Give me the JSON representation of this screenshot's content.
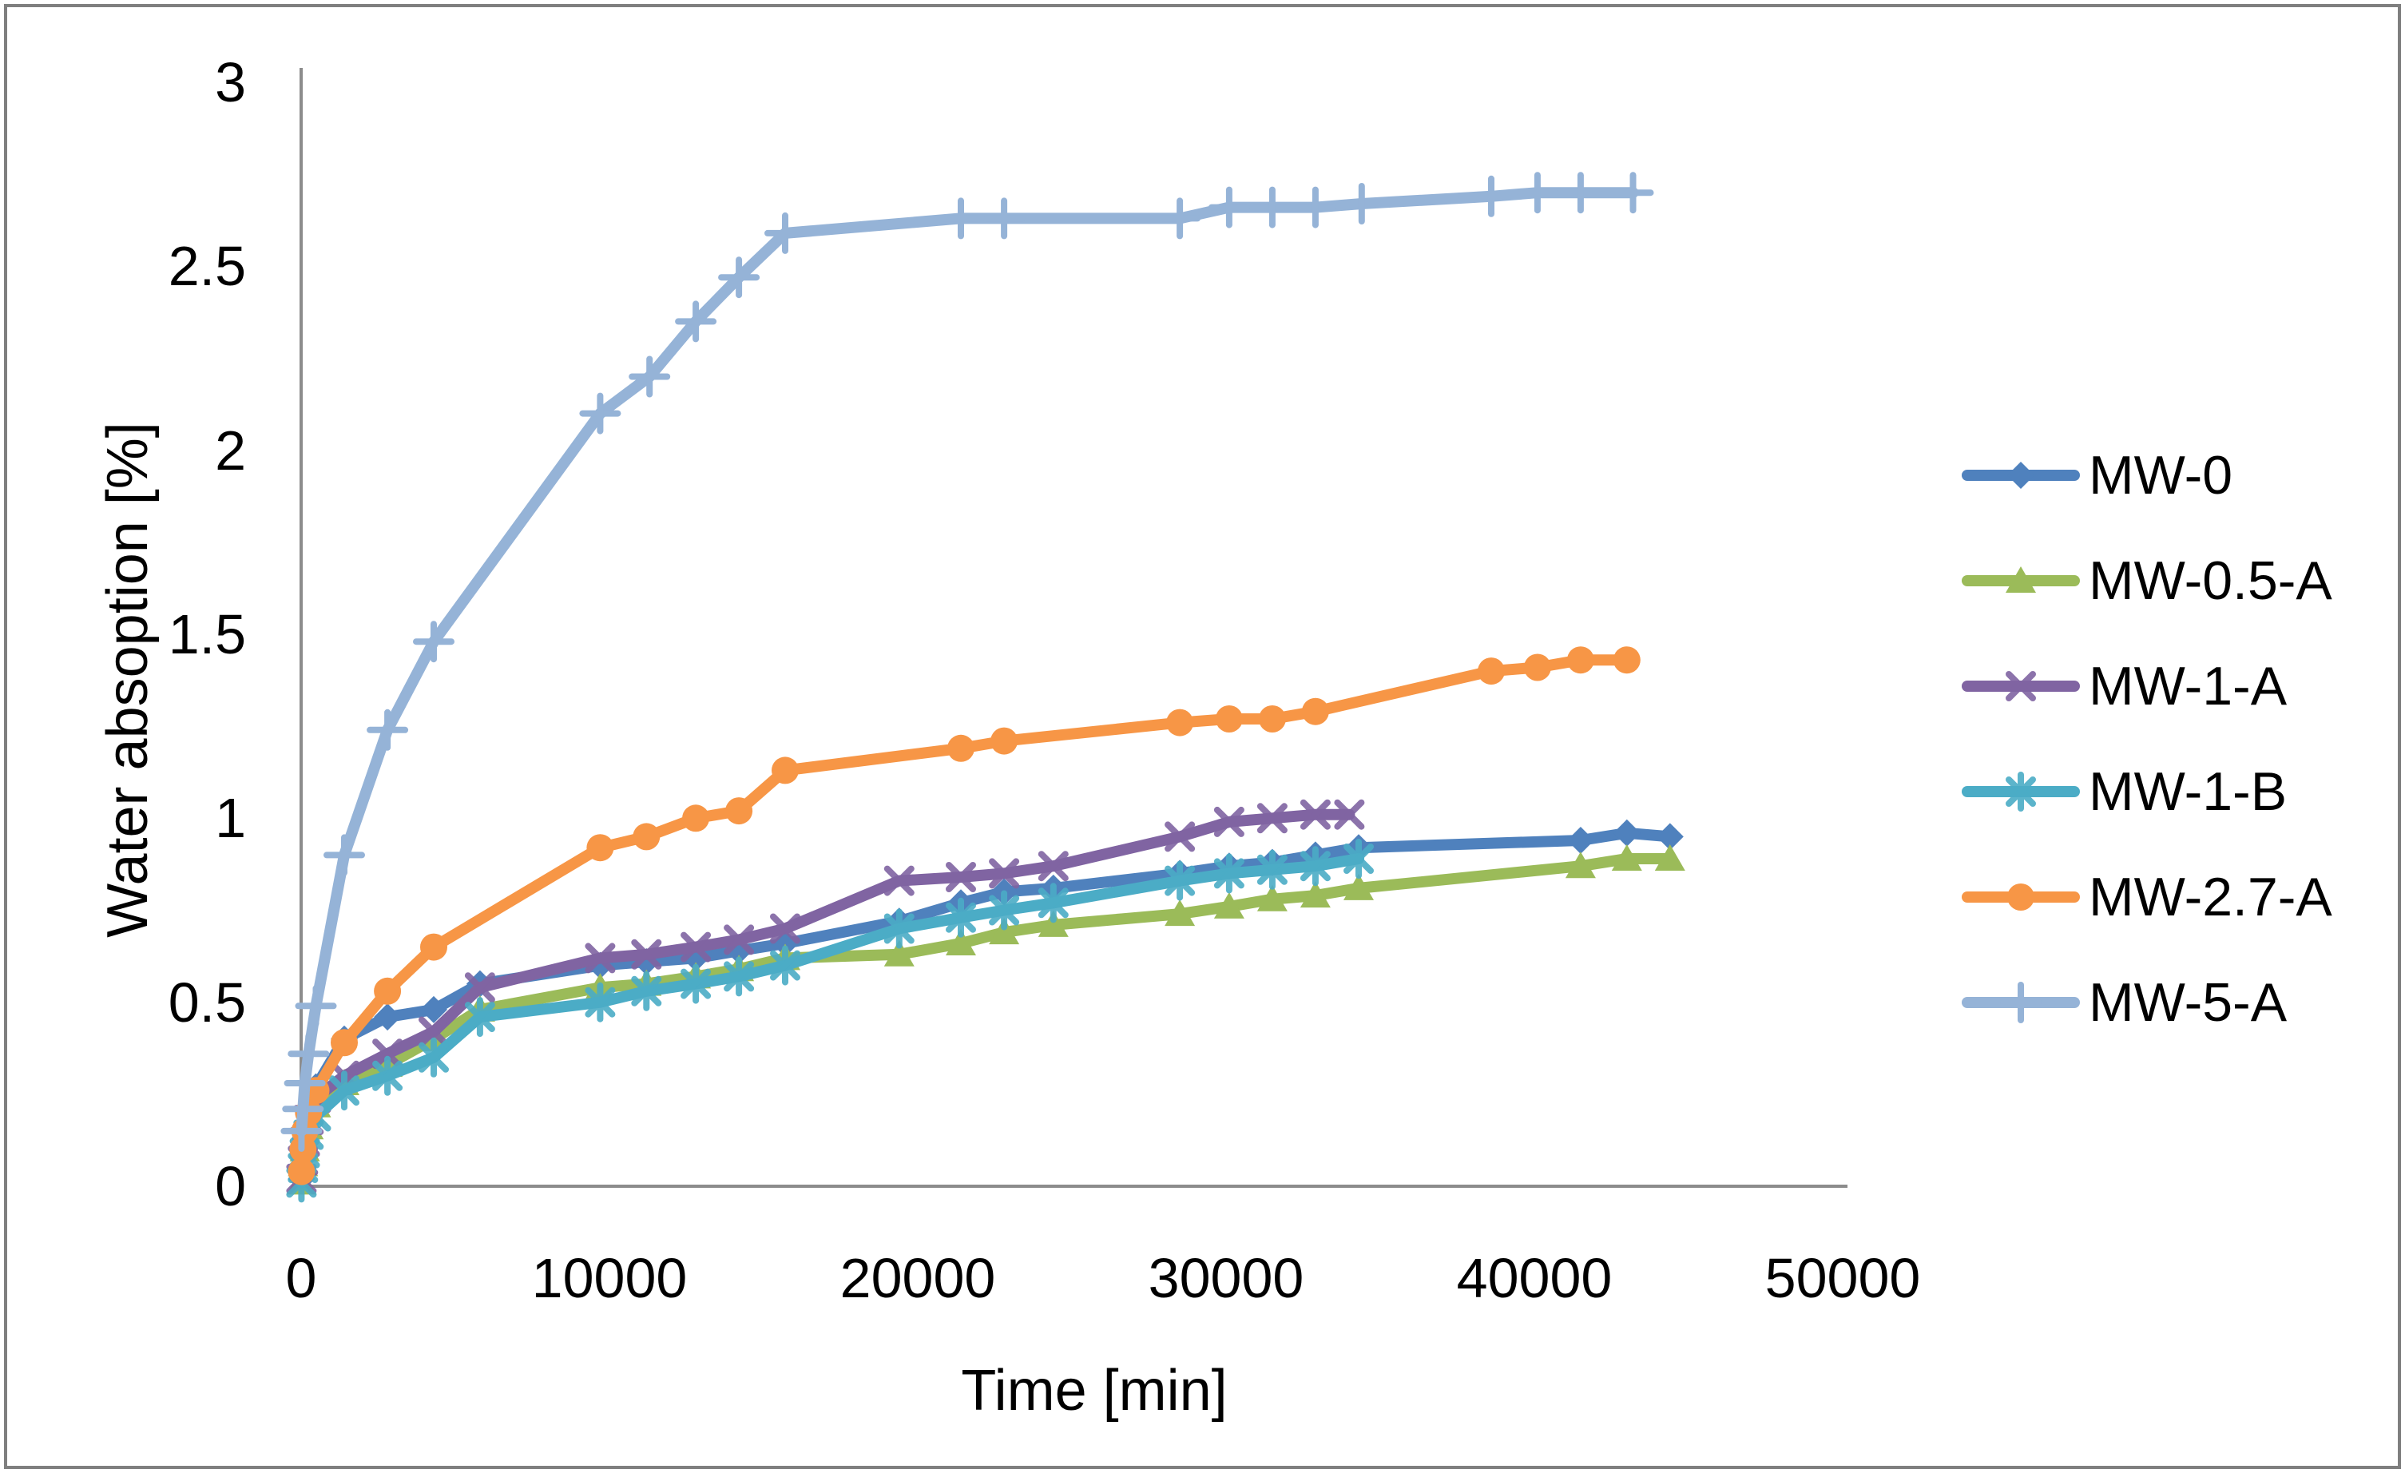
{
  "figure": {
    "background_color": "#ffffff",
    "border_color": "#7f7f7f",
    "axis_color": "#8c8c8c",
    "text_color": "#000000"
  },
  "chart_data": {
    "type": "line",
    "title": "",
    "xlabel": "Time [min]",
    "ylabel": "Water absoption [%]",
    "xlim": [
      0,
      50000
    ],
    "ylim": [
      0,
      3
    ],
    "xticks": [
      0,
      10000,
      20000,
      30000,
      40000,
      50000
    ],
    "xtick_labels": [
      "0",
      "10000",
      "20000",
      "30000",
      "40000",
      "50000"
    ],
    "yticks": [
      0,
      0.5,
      1,
      1.5,
      2,
      2.5,
      3
    ],
    "ytick_labels": [
      "0",
      "0.5",
      "1",
      "1.5",
      "2",
      "2.5",
      "3"
    ],
    "grid": false,
    "legend_position": "right",
    "series": [
      {
        "name": "MW-0",
        "color": "#4F81BD",
        "marker": "diamond",
        "x": [
          10,
          60,
          120,
          240,
          480,
          1400,
          2800,
          4300,
          5800,
          9700,
          11200,
          12800,
          14200,
          15700,
          19400,
          21400,
          22800,
          24400,
          28500,
          30100,
          31500,
          32900,
          34300,
          41500,
          43000,
          44400
        ],
        "y": [
          0.02,
          0.08,
          0.13,
          0.2,
          0.27,
          0.4,
          0.46,
          0.48,
          0.55,
          0.6,
          0.61,
          0.62,
          0.64,
          0.66,
          0.72,
          0.77,
          0.8,
          0.81,
          0.85,
          0.87,
          0.88,
          0.9,
          0.92,
          0.94,
          0.96,
          0.95
        ]
      },
      {
        "name": "MW-0.5-A",
        "color": "#9BBB59",
        "marker": "triangle",
        "x": [
          10,
          60,
          120,
          240,
          480,
          1400,
          2800,
          4300,
          5800,
          9700,
          11200,
          12800,
          14200,
          15700,
          19400,
          21400,
          22800,
          24400,
          28500,
          30100,
          31500,
          32900,
          34300,
          41500,
          43000,
          44400
        ],
        "y": [
          0.01,
          0.06,
          0.1,
          0.16,
          0.22,
          0.28,
          0.33,
          0.4,
          0.48,
          0.54,
          0.55,
          0.57,
          0.59,
          0.62,
          0.63,
          0.66,
          0.69,
          0.71,
          0.74,
          0.76,
          0.78,
          0.79,
          0.81,
          0.87,
          0.89,
          0.89
        ]
      },
      {
        "name": "MW-1-A",
        "color": "#8064A2",
        "marker": "x",
        "x": [
          10,
          60,
          120,
          240,
          480,
          1400,
          2800,
          4300,
          5800,
          9700,
          11200,
          12800,
          14200,
          15700,
          19400,
          21400,
          22800,
          24400,
          28500,
          30100,
          31500,
          32900,
          34000
        ],
        "y": [
          0.02,
          0.07,
          0.12,
          0.18,
          0.24,
          0.3,
          0.36,
          0.42,
          0.54,
          0.62,
          0.63,
          0.65,
          0.67,
          0.7,
          0.83,
          0.84,
          0.85,
          0.87,
          0.95,
          0.99,
          1.0,
          1.01,
          1.01
        ]
      },
      {
        "name": "MW-1-B",
        "color": "#4BACC6",
        "marker": "asterisk",
        "x": [
          10,
          60,
          120,
          240,
          480,
          1400,
          2800,
          4300,
          5800,
          9700,
          11200,
          12800,
          14200,
          15700,
          19400,
          21400,
          22800,
          24400,
          28500,
          30100,
          31500,
          32900,
          34300
        ],
        "y": [
          0.01,
          0.05,
          0.09,
          0.14,
          0.19,
          0.26,
          0.3,
          0.35,
          0.46,
          0.5,
          0.53,
          0.55,
          0.57,
          0.6,
          0.7,
          0.73,
          0.75,
          0.77,
          0.83,
          0.85,
          0.86,
          0.87,
          0.89
        ]
      },
      {
        "name": "MW-2.7-A",
        "color": "#F79646",
        "marker": "circle",
        "x": [
          10,
          60,
          120,
          240,
          480,
          1400,
          2800,
          4300,
          9700,
          11200,
          12800,
          14200,
          15700,
          21400,
          22800,
          28500,
          30100,
          31500,
          32900,
          38600,
          40100,
          41500,
          43000
        ],
        "y": [
          0.04,
          0.1,
          0.15,
          0.2,
          0.26,
          0.39,
          0.53,
          0.65,
          0.92,
          0.95,
          1.0,
          1.02,
          1.13,
          1.19,
          1.21,
          1.26,
          1.27,
          1.27,
          1.29,
          1.4,
          1.41,
          1.43,
          1.43
        ]
      },
      {
        "name": "MW-5-A",
        "color": "#95B3D7",
        "marker": "plus",
        "x": [
          10,
          60,
          120,
          240,
          480,
          1400,
          2800,
          4300,
          9700,
          11300,
          12800,
          14200,
          15700,
          21400,
          22800,
          28500,
          30100,
          31500,
          32900,
          34400,
          38600,
          40100,
          41500,
          43200
        ],
        "y": [
          0.15,
          0.21,
          0.28,
          0.36,
          0.49,
          0.9,
          1.24,
          1.48,
          2.1,
          2.2,
          2.35,
          2.47,
          2.59,
          2.63,
          2.63,
          2.63,
          2.66,
          2.66,
          2.66,
          2.67,
          2.69,
          2.7,
          2.7,
          2.7
        ]
      }
    ]
  }
}
